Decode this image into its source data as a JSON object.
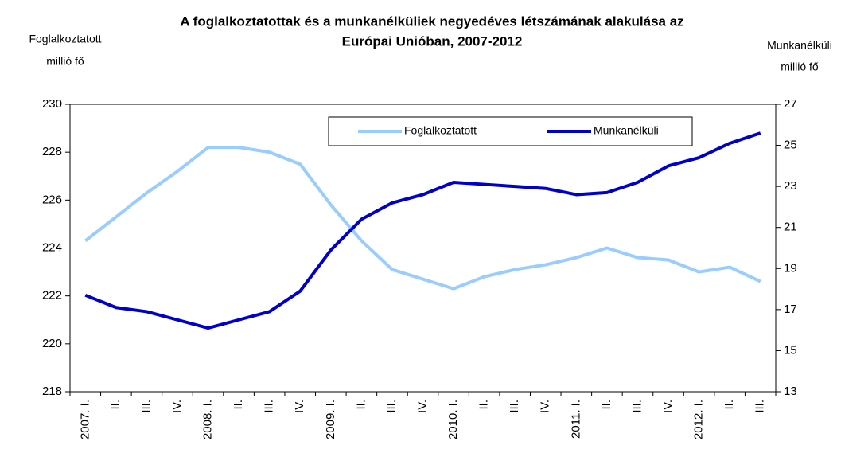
{
  "chart_data": {
    "type": "line",
    "title": [
      "A foglalkoztatottak és a munkanélküliek negyedéves létszámának alakulása az",
      "Európai Unióban, 2007-2012"
    ],
    "ylabel": [
      "Foglalkoztatott",
      "millió fő"
    ],
    "y2label": [
      "Munkanélküli",
      "millió fő"
    ],
    "categories": [
      "2007. I.",
      "II.",
      "III.",
      "IV.",
      "2008. I.",
      "II.",
      "III.",
      "IV.",
      "2009. I.",
      "II.",
      "III.",
      "IV.",
      "2010. I.",
      "II.",
      "III.",
      "IV.",
      "2011. I.",
      "II.",
      "III.",
      "IV.",
      "2012. I.",
      "II.",
      "III."
    ],
    "series": [
      {
        "name": "Foglalkoztatott",
        "color": "#99ccff",
        "axis": "y",
        "values": [
          224.3,
          225.3,
          226.3,
          227.2,
          228.2,
          228.2,
          228.0,
          227.5,
          225.8,
          224.3,
          223.1,
          222.7,
          222.3,
          222.8,
          223.1,
          223.3,
          223.6,
          224.0,
          223.6,
          223.5,
          223.0,
          223.2,
          222.6
        ]
      },
      {
        "name": "Munkanélküli",
        "color": "#0000cc",
        "axis": "y2",
        "values": [
          17.7,
          17.1,
          16.9,
          16.5,
          16.1,
          16.5,
          16.9,
          17.9,
          19.9,
          21.4,
          22.2,
          22.6,
          23.2,
          23.1,
          23.0,
          22.9,
          22.6,
          22.7,
          23.2,
          24.0,
          24.4,
          25.1,
          25.6
        ]
      }
    ],
    "ylim": [
      218,
      230
    ],
    "yticks": [
      218,
      220,
      222,
      224,
      226,
      228,
      230
    ],
    "y2lim": [
      13,
      27
    ],
    "y2ticks": [
      13,
      15,
      17,
      19,
      21,
      23,
      25,
      27
    ],
    "legend": "top"
  }
}
